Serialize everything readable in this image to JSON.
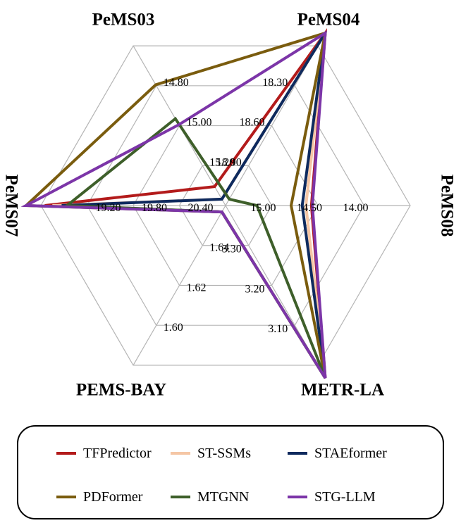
{
  "chart_data": {
    "type": "radar",
    "axes": [
      "PeMS03",
      "PeMS04",
      "PeMS08",
      "METR-LA",
      "PEMS-BAY",
      "PeMS07"
    ],
    "tick_labels": {
      "PeMS03": [
        "14.80",
        "15.00",
        "15.20"
      ],
      "PeMS04": [
        "18.30",
        "18.60",
        "18.90"
      ],
      "PeMS08": [
        "14.00",
        "14.50",
        "15.00"
      ],
      "METR-LA": [
        "3.10",
        "3.20",
        "3.30"
      ],
      "PEMS-BAY": [
        "1.60",
        "1.62",
        "1.64"
      ],
      "PeMS07": [
        "19.20",
        "19.80",
        "20.40"
      ]
    },
    "scale_note": "Each spoke is a reversed scale: lower error plots farther out.",
    "scale_levels": [
      1,
      0.75,
      0.5,
      0.25
    ],
    "series": [
      {
        "name": "TFPredictor",
        "color": "#b31b1b",
        "values": [
          15.3,
          14.58,
          14.51,
          1.573,
          3.055,
          18.54
        ]
      },
      {
        "name": "ST-SSMs",
        "color": "#f5c6a5",
        "values": [
          15.85,
          14.59,
          14.57,
          1.601,
          3.131,
          18.64
        ]
      },
      {
        "name": "STAEformer",
        "color": "#0e2a5e",
        "values": [
          16.1,
          14.54,
          14.61,
          1.601,
          3.086,
          18.76
        ]
      },
      {
        "name": "PDFormer",
        "color": "#7a5c0e",
        "values": [
          14.79,
          14.32,
          14.73,
          1.626,
          3.267,
          18.27
        ]
      },
      {
        "name": "MTGNN",
        "color": "#3e5f2a",
        "values": [
          14.96,
          20.46,
          15.1,
          1.649,
          3.094,
          18.83
        ]
      },
      {
        "name": "STG-LLM",
        "color": "#7c35a8",
        "values": [
          14.99,
          14.06,
          14.5,
          1.615,
          3.125,
          18.24
        ]
      }
    ]
  }
}
